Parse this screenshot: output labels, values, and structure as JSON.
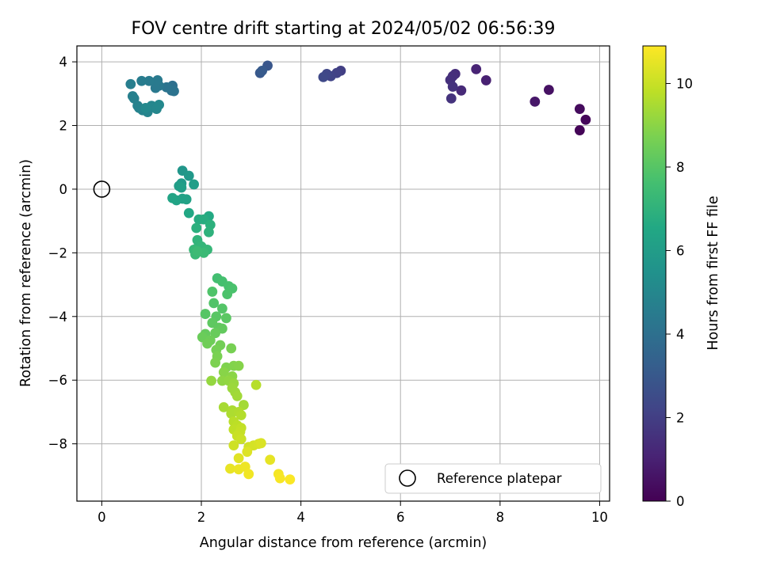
{
  "chart_data": {
    "type": "scatter",
    "title": "FOV centre drift starting at 2024/05/02 06:56:39",
    "xlabel": "Angular distance from reference (arcmin)",
    "ylabel": "Rotation from reference (arcmin)",
    "colorbar_label": "Hours from first FF file",
    "colormap": "viridis",
    "xlim": [
      -0.5,
      10.2
    ],
    "ylim": [
      -9.8,
      4.5
    ],
    "clim": [
      0,
      10.9
    ],
    "x_ticks": [
      0,
      2,
      4,
      6,
      8,
      10
    ],
    "x_tick_labels": [
      "0",
      "2",
      "4",
      "6",
      "8",
      "10"
    ],
    "y_ticks": [
      4,
      2,
      0,
      -2,
      -4,
      -6,
      -8
    ],
    "y_tick_labels": [
      "4",
      "2",
      "0",
      "−2",
      "−4",
      "−6",
      "−8"
    ],
    "c_ticks": [
      0,
      2,
      4,
      6,
      8,
      10
    ],
    "c_tick_labels": [
      "0",
      "2",
      "4",
      "6",
      "8",
      "10"
    ],
    "grid": true,
    "legend": {
      "placement": "lower-right",
      "label": "Reference platepar"
    },
    "reference_point": {
      "x": 0,
      "y": 0
    },
    "points": [
      [
        9.6,
        1.85,
        0.1
      ],
      [
        9.72,
        2.18,
        0.2
      ],
      [
        9.6,
        2.52,
        0.3
      ],
      [
        8.98,
        3.12,
        0.5
      ],
      [
        8.7,
        2.75,
        0.7
      ],
      [
        7.72,
        3.42,
        1.0
      ],
      [
        7.52,
        3.77,
        1.1
      ],
      [
        7.22,
        3.1,
        1.3
      ],
      [
        7.1,
        3.62,
        1.4
      ],
      [
        7.05,
        3.55,
        1.45
      ],
      [
        7.0,
        3.43,
        1.5
      ],
      [
        7.05,
        3.22,
        1.55
      ],
      [
        7.02,
        2.85,
        1.6
      ],
      [
        4.8,
        3.72,
        2.0
      ],
      [
        4.72,
        3.65,
        2.1
      ],
      [
        4.6,
        3.55,
        2.2
      ],
      [
        4.52,
        3.62,
        2.3
      ],
      [
        4.45,
        3.52,
        2.4
      ],
      [
        3.33,
        3.88,
        2.9
      ],
      [
        3.18,
        3.65,
        3.0
      ],
      [
        3.22,
        3.72,
        3.05
      ],
      [
        1.42,
        3.25,
        4.0
      ],
      [
        1.4,
        3.1,
        4.1
      ],
      [
        1.45,
        3.08,
        4.15
      ],
      [
        1.3,
        3.2,
        4.2
      ],
      [
        1.1,
        3.32,
        4.3
      ],
      [
        1.15,
        3.25,
        4.35
      ],
      [
        1.08,
        3.18,
        4.4
      ],
      [
        1.12,
        3.42,
        4.45
      ],
      [
        0.95,
        3.4,
        4.5
      ],
      [
        0.8,
        3.4,
        4.55
      ],
      [
        0.58,
        3.3,
        4.6
      ],
      [
        0.62,
        2.92,
        4.65
      ],
      [
        0.65,
        2.85,
        4.7
      ],
      [
        0.72,
        2.62,
        4.75
      ],
      [
        0.75,
        2.55,
        4.8
      ],
      [
        0.82,
        2.48,
        4.85
      ],
      [
        0.92,
        2.42,
        4.9
      ],
      [
        1.0,
        2.62,
        4.95
      ],
      [
        1.1,
        2.52,
        5.0
      ],
      [
        1.15,
        2.65,
        5.05
      ],
      [
        0.88,
        2.55,
        5.1
      ],
      [
        1.62,
        0.58,
        5.7
      ],
      [
        1.75,
        0.42,
        5.8
      ],
      [
        1.6,
        0.18,
        5.9
      ],
      [
        1.55,
        0.1,
        6.0
      ],
      [
        1.85,
        0.15,
        6.05
      ],
      [
        1.6,
        0.05,
        6.1
      ],
      [
        1.62,
        -0.3,
        6.2
      ],
      [
        1.7,
        -0.32,
        6.25
      ],
      [
        1.5,
        -0.35,
        6.3
      ],
      [
        1.42,
        -0.28,
        6.35
      ],
      [
        1.75,
        -0.75,
        6.5
      ],
      [
        2.15,
        -0.85,
        6.6
      ],
      [
        1.95,
        -0.95,
        6.7
      ],
      [
        2.05,
        -0.95,
        6.75
      ],
      [
        1.9,
        -1.22,
        6.85
      ],
      [
        2.18,
        -1.12,
        6.9
      ],
      [
        2.15,
        -1.35,
        6.95
      ],
      [
        1.92,
        -1.6,
        7.05
      ],
      [
        1.95,
        -1.75,
        7.1
      ],
      [
        2.0,
        -1.8,
        7.15
      ],
      [
        2.12,
        -1.9,
        7.2
      ],
      [
        1.85,
        -1.9,
        7.25
      ],
      [
        1.88,
        -2.05,
        7.3
      ],
      [
        2.05,
        -2.0,
        7.35
      ],
      [
        1.92,
        -1.95,
        7.4
      ],
      [
        2.32,
        -2.8,
        7.6
      ],
      [
        2.42,
        -2.9,
        7.65
      ],
      [
        2.55,
        -3.05,
        7.7
      ],
      [
        2.62,
        -3.12,
        7.75
      ],
      [
        2.52,
        -3.3,
        7.8
      ],
      [
        2.22,
        -3.22,
        7.85
      ],
      [
        2.25,
        -3.58,
        7.9
      ],
      [
        2.42,
        -3.75,
        7.95
      ],
      [
        2.08,
        -3.92,
        8.0
      ],
      [
        2.3,
        -4.0,
        8.05
      ],
      [
        2.5,
        -4.05,
        8.1
      ],
      [
        2.22,
        -4.2,
        8.15
      ],
      [
        2.35,
        -4.35,
        8.2
      ],
      [
        2.42,
        -4.38,
        8.25
      ],
      [
        2.08,
        -4.55,
        8.3
      ],
      [
        2.28,
        -4.52,
        8.35
      ],
      [
        2.02,
        -4.65,
        8.4
      ],
      [
        2.18,
        -4.75,
        8.45
      ],
      [
        2.12,
        -4.85,
        8.5
      ],
      [
        2.38,
        -4.9,
        8.55
      ],
      [
        2.3,
        -5.05,
        8.6
      ],
      [
        2.6,
        -5.0,
        8.65
      ],
      [
        2.32,
        -5.25,
        8.7
      ],
      [
        2.28,
        -5.45,
        8.75
      ],
      [
        2.5,
        -5.6,
        8.8
      ],
      [
        2.65,
        -5.55,
        8.85
      ],
      [
        2.75,
        -5.55,
        8.9
      ],
      [
        2.45,
        -5.75,
        8.95
      ],
      [
        2.62,
        -5.88,
        9.0
      ],
      [
        2.42,
        -6.02,
        9.05
      ],
      [
        2.55,
        -6.02,
        9.1
      ],
      [
        2.2,
        -6.02,
        9.15
      ],
      [
        2.65,
        -6.1,
        9.2
      ],
      [
        2.62,
        -6.25,
        9.25
      ],
      [
        2.68,
        -6.38,
        9.3
      ],
      [
        2.72,
        -6.5,
        9.35
      ],
      [
        2.85,
        -6.78,
        9.4
      ],
      [
        2.45,
        -6.85,
        9.45
      ],
      [
        2.62,
        -6.95,
        9.5
      ],
      [
        2.6,
        -7.05,
        9.55
      ],
      [
        2.75,
        -7.0,
        9.6
      ],
      [
        2.8,
        -7.1,
        9.65
      ],
      [
        3.1,
        -6.15,
        9.7
      ],
      [
        2.65,
        -7.3,
        9.75
      ],
      [
        2.72,
        -7.42,
        9.8
      ],
      [
        2.65,
        -7.55,
        9.85
      ],
      [
        2.8,
        -7.5,
        9.9
      ],
      [
        2.78,
        -7.62,
        9.95
      ],
      [
        2.72,
        -7.75,
        10.0
      ],
      [
        2.8,
        -7.85,
        10.05
      ],
      [
        2.65,
        -8.05,
        10.1
      ],
      [
        2.95,
        -8.1,
        10.15
      ],
      [
        3.05,
        -8.05,
        10.2
      ],
      [
        3.15,
        -8.0,
        10.25
      ],
      [
        3.2,
        -7.98,
        10.3
      ],
      [
        2.92,
        -8.25,
        10.35
      ],
      [
        2.75,
        -8.45,
        10.4
      ],
      [
        3.38,
        -8.5,
        10.5
      ],
      [
        2.58,
        -8.78,
        10.55
      ],
      [
        2.75,
        -8.8,
        10.6
      ],
      [
        2.88,
        -8.72,
        10.65
      ],
      [
        2.95,
        -8.95,
        10.7
      ],
      [
        3.55,
        -8.95,
        10.75
      ],
      [
        3.58,
        -9.08,
        10.8
      ],
      [
        3.78,
        -9.12,
        10.85
      ]
    ]
  }
}
